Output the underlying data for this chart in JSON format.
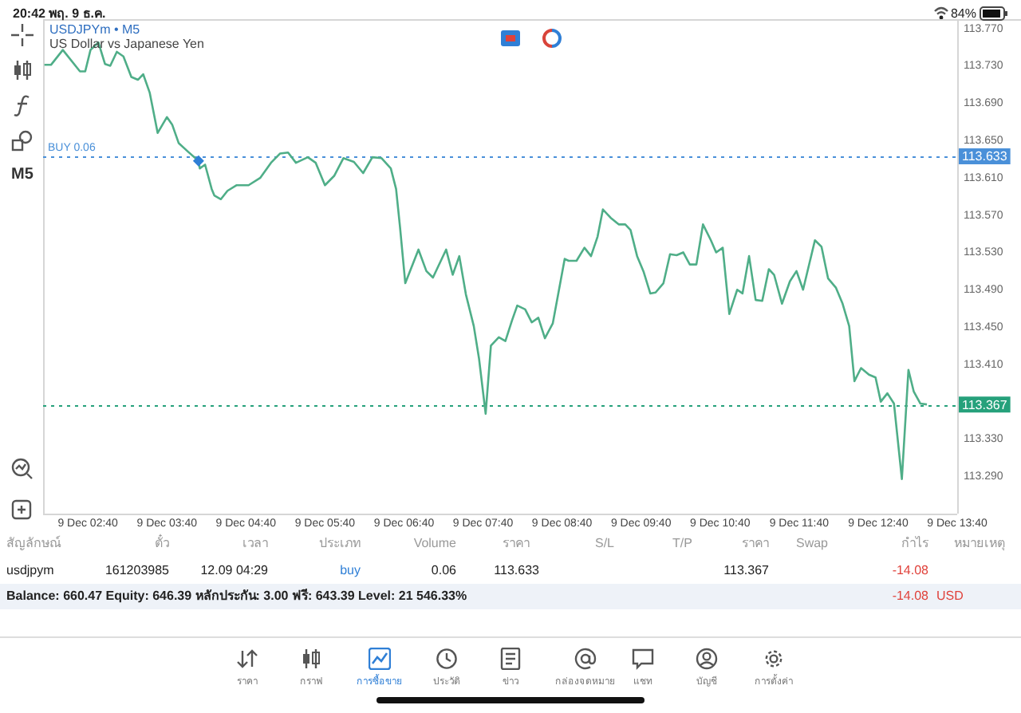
{
  "chart_data": {
    "type": "line",
    "title": "USDJPYm • M5",
    "subtitle": "US Dollar vs Japanese Yen",
    "marker": "none",
    "grid": false,
    "xlim": [
      "--12-09T02:06",
      "--12-09T13:40"
    ],
    "ylim": [
      113.25,
      113.78
    ],
    "xticks": [
      {
        "value": "--12-09T02:40",
        "label": "9 Dec 02:40"
      },
      {
        "value": "--12-09T03:40",
        "label": "9 Dec 03:40"
      },
      {
        "value": "--12-09T04:40",
        "label": "9 Dec 04:40"
      },
      {
        "value": "--12-09T05:40",
        "label": "9 Dec 05:40"
      },
      {
        "value": "--12-09T06:40",
        "label": "9 Dec 06:40"
      },
      {
        "value": "--12-09T07:40",
        "label": "9 Dec 07:40"
      },
      {
        "value": "--12-09T08:40",
        "label": "9 Dec 08:40"
      },
      {
        "value": "--12-09T09:40",
        "label": "9 Dec 09:40"
      },
      {
        "value": "--12-09T10:40",
        "label": "9 Dec 10:40"
      },
      {
        "value": "--12-09T11:40",
        "label": "9 Dec 11:40"
      },
      {
        "value": "--12-09T12:40",
        "label": "9 Dec 12:40"
      },
      {
        "value": "--12-09T13:40",
        "label": "9 Dec 13:40"
      }
    ],
    "yticks": [
      {
        "value": 113.77,
        "label": "113.770"
      },
      {
        "value": 113.73,
        "label": "113.730"
      },
      {
        "value": 113.69,
        "label": "113.690"
      },
      {
        "value": 113.65,
        "label": "113.650"
      },
      {
        "value": 113.61,
        "label": "113.610"
      },
      {
        "value": 113.57,
        "label": "113.570"
      },
      {
        "value": 113.53,
        "label": "113.530"
      },
      {
        "value": 113.49,
        "label": "113.490"
      },
      {
        "value": 113.45,
        "label": "113.450"
      },
      {
        "value": 113.41,
        "label": "113.410"
      },
      {
        "value": 113.33,
        "label": "113.330"
      },
      {
        "value": 113.29,
        "label": "113.290"
      }
    ],
    "series": [
      {
        "color": "#4fae88",
        "x": [
          "--12-09T02:07",
          "--12-09T02:12",
          "--12-09T02:21",
          "--12-09T02:34",
          "--12-09T02:38",
          "--12-09T02:42",
          "--12-09T02:48",
          "--12-09T02:53",
          "--12-09T02:57",
          "--12-09T03:02",
          "--12-09T03:07",
          "--12-09T03:13",
          "--12-09T03:18",
          "--12-09T03:22",
          "--12-09T03:27",
          "--12-09T03:33",
          "--12-09T03:40",
          "--12-09T03:44",
          "--12-09T03:49",
          "--12-09T03:56",
          "--12-09T04:04",
          "--12-09T04:05",
          "--12-09T04:09",
          "--12-09T04:14",
          "--12-09T04:16",
          "--12-09T04:21",
          "--12-09T04:26",
          "--12-09T04:33",
          "--12-09T04:42",
          "--12-09T04:51",
          "--12-09T04:59",
          "--12-09T05:06",
          "--12-09T05:12",
          "--12-09T05:18",
          "--12-09T05:27",
          "--12-09T05:33",
          "--12-09T05:40",
          "--12-09T05:47",
          "--12-09T05:54",
          "--12-09T06:02",
          "--12-09T06:09",
          "--12-09T06:16",
          "--12-09T06:23",
          "--12-09T06:30",
          "--12-09T06:34",
          "--12-09T06:37",
          "--12-09T06:41",
          "--12-09T06:51",
          "--12-09T06:57",
          "--12-09T07:02",
          "--12-09T07:12",
          "--12-09T07:17",
          "--12-09T07:22",
          "--12-09T07:27",
          "--12-09T07:33",
          "--12-09T07:37",
          "--12-09T07:42",
          "--12-09T07:46",
          "--12-09T07:52",
          "--12-09T07:57",
          "--12-09T08:02",
          "--12-09T08:06",
          "--12-09T08:12",
          "--12-09T08:17",
          "--12-09T08:22",
          "--12-09T08:27",
          "--12-09T08:33",
          "--12-09T08:42",
          "--12-09T08:45",
          "--12-09T08:51",
          "--12-09T08:57",
          "--12-09T09:02",
          "--12-09T09:07",
          "--12-09T09:11",
          "--12-09T09:17",
          "--12-09T09:23",
          "--12-09T09:28",
          "--12-09T09:32",
          "--12-09T09:37",
          "--12-09T09:42",
          "--12-09T09:47",
          "--12-09T09:51",
          "--12-09T09:57",
          "--12-09T10:02",
          "--12-09T10:07",
          "--12-09T10:12",
          "--12-09T10:17",
          "--12-09T10:22",
          "--12-09T10:27",
          "--12-09T10:33",
          "--12-09T10:37",
          "--12-09T10:42",
          "--12-09T10:47",
          "--12-09T10:53",
          "--12-09T10:57",
          "--12-09T11:02",
          "--12-09T11:07",
          "--12-09T11:12",
          "--12-09T11:17",
          "--12-09T11:21",
          "--12-09T11:27",
          "--12-09T11:33",
          "--12-09T11:38",
          "--12-09T11:43",
          "--12-09T11:52",
          "--12-09T11:57",
          "--12-09T12:02",
          "--12-09T12:08",
          "--12-09T12:13",
          "--12-09T12:18",
          "--12-09T12:22",
          "--12-09T12:27",
          "--12-09T12:33",
          "--12-09T12:38",
          "--12-09T12:42",
          "--12-09T12:47",
          "--12-09T12:52",
          "--12-09T12:58",
          "--12-09T13:03",
          "--12-09T13:07",
          "--12-09T13:12",
          "--12-09T13:17"
        ],
        "values": [
          113.731,
          113.731,
          113.747,
          113.724,
          113.724,
          113.747,
          113.755,
          113.732,
          113.73,
          113.745,
          113.74,
          113.718,
          113.715,
          113.721,
          113.701,
          113.658,
          113.675,
          113.667,
          113.647,
          113.638,
          113.628,
          113.62,
          113.624,
          113.598,
          113.591,
          113.587,
          113.596,
          113.602,
          113.602,
          113.61,
          113.626,
          113.636,
          113.637,
          113.626,
          113.632,
          113.626,
          113.602,
          113.612,
          113.631,
          113.627,
          113.615,
          113.632,
          113.631,
          113.62,
          113.598,
          113.557,
          113.497,
          113.533,
          113.51,
          113.503,
          113.533,
          113.506,
          113.526,
          113.485,
          113.451,
          113.416,
          113.357,
          113.43,
          113.439,
          113.435,
          113.457,
          113.473,
          113.469,
          113.455,
          113.46,
          113.438,
          113.454,
          113.523,
          113.521,
          113.521,
          113.535,
          113.526,
          113.547,
          113.576,
          113.567,
          113.56,
          113.56,
          113.554,
          113.526,
          113.509,
          113.486,
          113.487,
          113.497,
          113.528,
          113.527,
          113.53,
          113.517,
          113.517,
          113.56,
          113.543,
          113.53,
          113.535,
          113.464,
          113.49,
          113.486,
          113.526,
          113.479,
          113.478,
          113.512,
          113.506,
          113.475,
          113.499,
          113.51,
          113.49,
          113.543,
          113.536,
          113.502,
          113.492,
          113.475,
          113.451,
          113.392,
          113.406,
          113.399,
          113.396,
          113.37,
          113.379,
          113.368,
          113.287,
          113.404,
          113.381,
          113.368,
          113.367
        ]
      },
      {
        "type": "scatter",
        "marker": "diamond",
        "color": "#2f7fd6",
        "x": [
          "--12-09T04:04"
        ],
        "values": [
          113.628
        ]
      }
    ],
    "ref_lines": [
      {
        "axis": "y",
        "value": 113.633,
        "label": "BUY 0.06",
        "color": "#4a90d9",
        "line_style": "dotted"
      },
      {
        "axis": "y",
        "value": 113.367,
        "color": "#26a17b",
        "line_style": "dotted"
      }
    ],
    "annotations": [
      "20:42  พฤ. 9 ธ.ค.",
      "84%",
      "M5",
      {
        "text": "113.633",
        "y": 113.633
      },
      {
        "text": "113.367",
        "y": 113.367
      },
      "สัญลักษณ์",
      "ตั๋ว",
      "เวลา",
      "ประเภท",
      "Volume",
      "ราคา",
      "S/L",
      "T/P",
      "ราคา",
      "Swap",
      "กำไร",
      "หมายเหตุ",
      "usdjpym",
      "161203985",
      "12.09 04:29",
      "buy",
      "0.06",
      "113.633",
      "113.367",
      "-14.08",
      "Balance: 660.47 Equity: 646.39 หลักประกัน: 3.00 ฟรี: 643.39 Level: 21 546.33%",
      "-14.08",
      "USD",
      "ราคา",
      "กราฟ",
      "การซื้อขาย",
      "ประวัติ",
      "ข่าว",
      "กล่องจดหมาย",
      "แชท",
      "บัญชี",
      "การตั้งค่า"
    ]
  }
}
